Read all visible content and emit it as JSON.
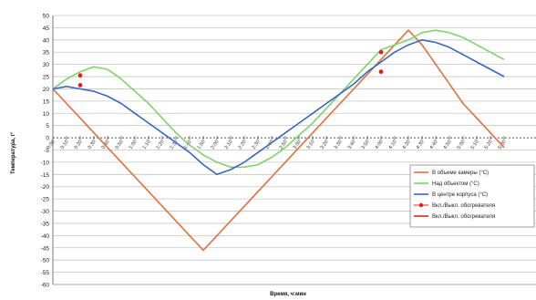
{
  "chart_data": {
    "type": "line",
    "title": "",
    "xlabel": "Время, ч:мин",
    "ylabel": "Температура, t°",
    "ylim": [
      -60,
      50
    ],
    "yticks": [
      50,
      45,
      40,
      35,
      30,
      25,
      20,
      15,
      10,
      5,
      0,
      -5,
      -10,
      -15,
      -20,
      -25,
      -30,
      -35,
      -40,
      -45,
      -50,
      -55,
      -60
    ],
    "grid": true,
    "legend_position": "right",
    "x": [
      "0:00",
      "0:10",
      "0:20",
      "0:30",
      "0:40",
      "0:50",
      "1:00",
      "1:10",
      "1:20",
      "1:30",
      "1:40",
      "1:50",
      "2:00",
      "2:10",
      "2:20",
      "2:30",
      "2:40",
      "2:50",
      "3:00",
      "3:10",
      "3:20",
      "3:30",
      "3:40",
      "3:50",
      "4:00",
      "4:10",
      "4:20",
      "4:30",
      "4:40",
      "4:50",
      "5:00",
      "5:10",
      "5:20",
      "5:30"
    ],
    "series": [
      {
        "name": "В объеме камеры (°С)",
        "color": "#e0703c",
        "values": [
          20,
          14,
          8,
          2,
          -4,
          -10,
          -16,
          -22,
          -28,
          -34,
          -40,
          -46,
          -40,
          -34,
          -28,
          -22,
          -16,
          -10,
          -4,
          2,
          8,
          14,
          20,
          26,
          32,
          38,
          44,
          38,
          30,
          22,
          14,
          8,
          2,
          -4
        ]
      },
      {
        "name": "Над объектом (°С)",
        "color": "#7ed36a",
        "values": [
          20,
          24,
          27,
          29,
          28,
          24,
          19,
          14,
          8,
          2,
          -3,
          -7,
          -10,
          -12,
          -12,
          -11,
          -8,
          -4,
          1,
          6,
          12,
          18,
          24,
          30,
          36,
          38,
          40,
          43,
          44,
          43,
          41,
          38,
          35,
          32
        ]
      },
      {
        "name": "В центре корпуса (°С)",
        "color": "#3a66c2",
        "values": [
          20,
          21,
          20,
          19,
          17,
          14,
          10,
          6,
          2,
          -2,
          -6,
          -11,
          -15,
          -13,
          -10,
          -6,
          -2,
          2,
          6,
          10,
          14,
          18,
          22,
          27,
          31,
          35,
          38,
          40,
          39,
          37,
          34,
          31,
          28,
          25
        ]
      }
    ],
    "markers": [
      {
        "name": "Вкл./Выкл. обогревателя",
        "color": "#e02020",
        "points": [
          {
            "x": "0:20",
            "y": 25.5
          },
          {
            "x": "0:20",
            "y": 21.5
          },
          {
            "x": "4:00",
            "y": 35
          },
          {
            "x": "4:00",
            "y": 27
          }
        ]
      }
    ],
    "legend": [
      {
        "label": "В объеме камеры (°С)",
        "color": "#e0703c",
        "style": "line"
      },
      {
        "label": "Над объектом (°С)",
        "color": "#7ed36a",
        "style": "line"
      },
      {
        "label": "В центре корпуса (°С)",
        "color": "#3a66c2",
        "style": "line"
      },
      {
        "label": "Вкл./Выкл. обогревателя",
        "color": "#e02020",
        "style": "marker-line"
      },
      {
        "label": "Вкл./Выкл. обогревателя",
        "color": "#e02020",
        "style": "line"
      }
    ]
  }
}
